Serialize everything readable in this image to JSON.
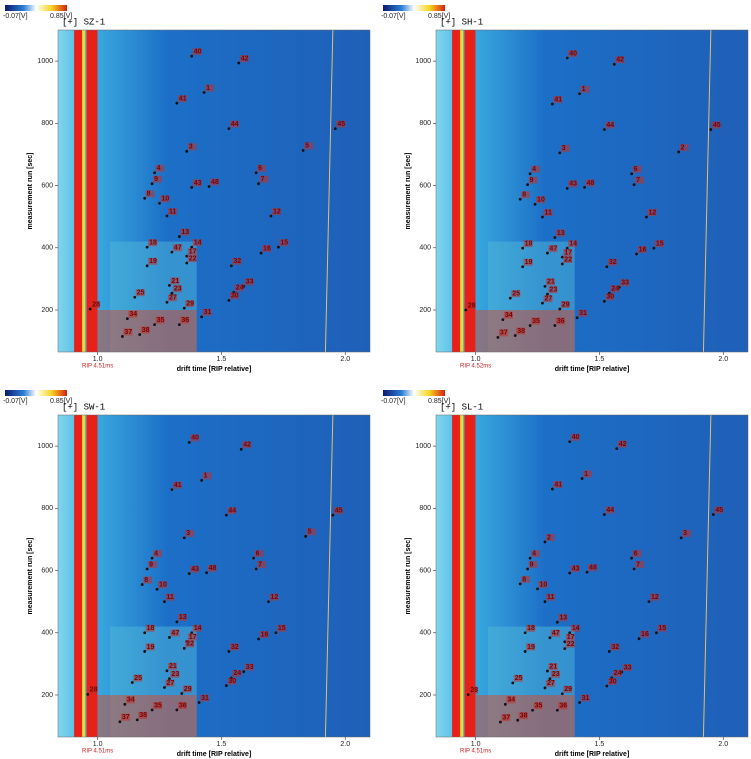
{
  "chart_data": [
    {
      "type": "scatter",
      "title": "[+] SZ-1",
      "x_label": "drift time [RIP relative]",
      "y_label": "measurement run [sec]",
      "rip_label": "RIP 4.51ms",
      "colorbar_labels": [
        "-0.07[V]",
        "0.85[V]"
      ],
      "xlim": [
        0.84,
        2.1
      ],
      "ylim": [
        65,
        1100
      ],
      "xticks": [
        {
          "value": 1,
          "label": "1.0"
        },
        {
          "value": 1.5,
          "label": "1.5"
        },
        {
          "value": 2,
          "label": "2.0"
        }
      ],
      "yticks": [
        200,
        400,
        600,
        800,
        1000
      ],
      "series": [
        {
          "labels": [
            "40",
            "42",
            "1",
            "41",
            "44",
            "45",
            "3",
            "5",
            "4",
            "6",
            "7",
            "9",
            "43",
            "48",
            "8",
            "10",
            "11",
            "12",
            "13",
            "18",
            "14",
            "15",
            "47",
            "17",
            "16",
            "19",
            "22",
            "32",
            "21",
            "33",
            "23",
            "24",
            "25",
            "27",
            "28",
            "29",
            "30",
            "31",
            "34",
            "37",
            "38",
            "35",
            "36"
          ],
          "x": [
            1.38,
            1.57,
            1.43,
            1.32,
            1.53,
            1.96,
            1.36,
            1.83,
            1.23,
            1.64,
            1.65,
            1.22,
            1.38,
            1.45,
            1.19,
            1.25,
            1.28,
            1.7,
            1.33,
            1.2,
            1.38,
            1.73,
            1.3,
            1.36,
            1.66,
            1.2,
            1.36,
            1.54,
            1.29,
            1.59,
            1.3,
            1.55,
            1.15,
            1.28,
            0.97,
            1.35,
            1.53,
            1.42,
            1.12,
            1.1,
            1.17,
            1.23,
            1.33
          ],
          "y": [
            1016,
            994,
            899,
            865,
            783,
            783,
            710,
            713,
            641,
            641,
            606,
            606,
            594,
            597,
            559,
            543,
            502,
            502,
            436,
            402,
            402,
            402,
            386,
            373,
            383,
            342,
            351,
            342,
            279,
            276,
            254,
            257,
            241,
            225,
            203,
            206,
            231,
            178,
            172,
            115,
            121,
            153,
            153
          ]
        }
      ]
    },
    {
      "type": "scatter",
      "title": "[+] SH-1",
      "x_label": "drift time [RIP relative]",
      "y_label": "measurement run [sec]",
      "rip_label": "RIP 4.52ms",
      "colorbar_labels": [
        "-0.07[V]",
        "0.85[V]"
      ],
      "xlim": [
        0.84,
        2.1
      ],
      "ylim": [
        65,
        1100
      ],
      "xticks": [
        {
          "value": 1,
          "label": "1.0"
        },
        {
          "value": 1.5,
          "label": "1.5"
        },
        {
          "value": 2,
          "label": "2.0"
        }
      ],
      "yticks": [
        200,
        400,
        600,
        800,
        1000
      ],
      "series": [
        {
          "labels": [
            "40",
            "42",
            "1",
            "41",
            "44",
            "45",
            "3",
            "2",
            "4",
            "6",
            "7",
            "9",
            "43",
            "48",
            "8",
            "10",
            "11",
            "12",
            "13",
            "18",
            "14",
            "15",
            "47",
            "17",
            "16",
            "19",
            "22",
            "32",
            "21",
            "33",
            "23",
            "24",
            "25",
            "27",
            "28",
            "29",
            "30",
            "31",
            "34",
            "37",
            "38",
            "35",
            "36"
          ],
          "x": [
            1.37,
            1.56,
            1.42,
            1.31,
            1.52,
            1.95,
            1.34,
            1.82,
            1.22,
            1.63,
            1.64,
            1.21,
            1.37,
            1.44,
            1.18,
            1.24,
            1.27,
            1.69,
            1.32,
            1.19,
            1.37,
            1.72,
            1.29,
            1.35,
            1.65,
            1.19,
            1.35,
            1.53,
            1.28,
            1.58,
            1.29,
            1.54,
            1.14,
            1.27,
            0.96,
            1.34,
            1.52,
            1.41,
            1.11,
            1.09,
            1.16,
            1.22,
            1.32
          ],
          "y": [
            1010,
            990,
            895,
            862,
            780,
            780,
            705,
            708,
            638,
            638,
            603,
            603,
            591,
            594,
            556,
            540,
            499,
            499,
            433,
            399,
            399,
            399,
            383,
            370,
            380,
            339,
            348,
            339,
            276,
            273,
            251,
            254,
            238,
            222,
            200,
            203,
            228,
            175,
            169,
            112,
            118,
            150,
            150
          ]
        }
      ]
    },
    {
      "type": "scatter",
      "title": "[+] SW-1",
      "x_label": "drift time [RIP relative]",
      "y_label": "measurement run [sec]",
      "rip_label": "RIP 4.51ms",
      "colorbar_labels": [
        "-0.07[V]",
        "0.85[V]"
      ],
      "xlim": [
        0.84,
        2.1
      ],
      "ylim": [
        65,
        1100
      ],
      "xticks": [
        {
          "value": 1,
          "label": "1.0"
        },
        {
          "value": 1.5,
          "label": "1.5"
        },
        {
          "value": 2,
          "label": "2.0"
        }
      ],
      "yticks": [
        200,
        400,
        600,
        800,
        1000
      ],
      "series": [
        {
          "labels": [
            "40",
            "42",
            "1",
            "41",
            "44",
            "45",
            "3",
            "5",
            "4",
            "6",
            "7",
            "9",
            "43",
            "48",
            "8",
            "10",
            "11",
            "12",
            "13",
            "18",
            "14",
            "15",
            "47",
            "17",
            "16",
            "19",
            "22",
            "32",
            "21",
            "33",
            "23",
            "24",
            "25",
            "27",
            "28",
            "29",
            "30",
            "31",
            "34",
            "37",
            "38",
            "35",
            "36"
          ],
          "x": [
            1.37,
            1.58,
            1.42,
            1.3,
            1.52,
            1.95,
            1.35,
            1.84,
            1.22,
            1.63,
            1.64,
            1.2,
            1.37,
            1.44,
            1.18,
            1.24,
            1.27,
            1.69,
            1.32,
            1.19,
            1.38,
            1.72,
            1.29,
            1.36,
            1.65,
            1.19,
            1.35,
            1.53,
            1.28,
            1.59,
            1.29,
            1.54,
            1.14,
            1.27,
            0.96,
            1.34,
            1.52,
            1.41,
            1.11,
            1.09,
            1.16,
            1.22,
            1.32
          ],
          "y": [
            1012,
            990,
            890,
            860,
            778,
            778,
            705,
            710,
            640,
            640,
            605,
            605,
            590,
            593,
            555,
            540,
            500,
            500,
            435,
            400,
            400,
            400,
            385,
            372,
            380,
            340,
            350,
            340,
            278,
            275,
            252,
            255,
            240,
            224,
            202,
            205,
            230,
            176,
            170,
            114,
            120,
            152,
            152
          ]
        }
      ]
    },
    {
      "type": "scatter",
      "title": "[+] SL-1",
      "x_label": "drift time [RIP relative]",
      "y_label": "measurement run [sec]",
      "rip_label": "RIP 4.51ms",
      "colorbar_labels": [
        "-0.07[V]",
        "0.85[V]"
      ],
      "xlim": [
        0.84,
        2.1
      ],
      "ylim": [
        65,
        1100
      ],
      "xticks": [
        {
          "value": 1,
          "label": "1.0"
        },
        {
          "value": 1.5,
          "label": "1.5"
        },
        {
          "value": 2,
          "label": "2.0"
        }
      ],
      "yticks": [
        200,
        400,
        600,
        800,
        1000
      ],
      "series": [
        {
          "labels": [
            "40",
            "42",
            "1",
            "41",
            "44",
            "45",
            "3",
            "2",
            "4",
            "6",
            "7",
            "9",
            "43",
            "48",
            "8",
            "10",
            "11",
            "12",
            "13",
            "18",
            "14",
            "15",
            "47",
            "17",
            "16",
            "19",
            "22",
            "32",
            "21",
            "33",
            "23",
            "24",
            "25",
            "27",
            "28",
            "29",
            "30",
            "31",
            "34",
            "37",
            "38",
            "35",
            "36"
          ],
          "x": [
            1.38,
            1.57,
            1.43,
            1.31,
            1.52,
            1.96,
            1.83,
            1.28,
            1.22,
            1.63,
            1.64,
            1.21,
            1.38,
            1.45,
            1.18,
            1.25,
            1.28,
            1.7,
            1.33,
            1.2,
            1.38,
            1.73,
            1.3,
            1.36,
            1.66,
            1.2,
            1.36,
            1.54,
            1.29,
            1.59,
            1.3,
            1.55,
            1.15,
            1.28,
            0.97,
            1.35,
            1.53,
            1.42,
            1.12,
            1.1,
            1.17,
            1.23,
            1.33
          ],
          "y": [
            1014,
            992,
            896,
            862,
            780,
            780,
            705,
            692,
            640,
            640,
            605,
            605,
            592,
            595,
            557,
            541,
            500,
            500,
            434,
            400,
            400,
            400,
            384,
            371,
            381,
            340,
            349,
            340,
            277,
            274,
            252,
            255,
            239,
            223,
            201,
            204,
            229,
            176,
            170,
            113,
            119,
            151,
            151
          ]
        }
      ]
    }
  ]
}
